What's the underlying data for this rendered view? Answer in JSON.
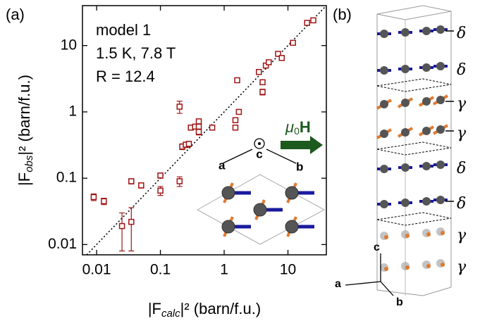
{
  "chart_data": {
    "type": "scatter",
    "panel_label": "(a)",
    "x_label": {
      "pre": "|F",
      "sub": "calc",
      "post": "|² (barn/f.u.)"
    },
    "y_label": {
      "pre": "|F",
      "sub": "obs",
      "post": "|² (barn/f.u.)"
    },
    "annotations": [
      "model 1",
      "1.5 K, 7.8 T",
      "R = 12.4"
    ],
    "log_x": true,
    "log_y": true,
    "xlim": [
      0.006,
      40
    ],
    "ylim": [
      0.007,
      40
    ],
    "xticks": [
      0.01,
      0.1,
      1,
      10
    ],
    "yticks": [
      0.01,
      0.1,
      1,
      10
    ],
    "series": [
      {
        "name": "model 1",
        "color": "#a01515",
        "x": [
          0.009,
          0.013,
          0.025,
          0.035,
          0.035,
          0.05,
          0.1,
          0.1,
          0.2,
          0.2,
          0.22,
          0.25,
          0.28,
          0.3,
          0.35,
          0.4,
          0.4,
          0.4,
          0.65,
          1.5,
          1.5,
          1.7,
          1.6,
          3.5,
          4,
          4,
          4.5,
          5,
          7,
          8,
          12,
          20,
          25
        ],
        "values": [
          0.052,
          0.045,
          0.019,
          0.022,
          0.09,
          0.078,
          0.11,
          0.065,
          0.09,
          1.2,
          0.3,
          0.32,
          0.33,
          0.58,
          0.6,
          0.6,
          0.72,
          0.5,
          0.58,
          0.75,
          0.58,
          1.0,
          3.0,
          4.0,
          2.0,
          2.8,
          5.0,
          5.6,
          7.5,
          6.5,
          11,
          22,
          24
        ],
        "errors": [
          0.006,
          0.005,
          0.011,
          0.014,
          0.008,
          0.007,
          0.01,
          0.01,
          0.015,
          0.25,
          0.03,
          0.03,
          0.03,
          0.05,
          0.05,
          0.05,
          0.06,
          0.05,
          0.05,
          0.06,
          0.05,
          0.08,
          0.2,
          0.3,
          0.2,
          0.2,
          0.4,
          0.4,
          0.6,
          0.5,
          0.8,
          1.5,
          1.8
        ]
      }
    ],
    "inset": {
      "field": "μ",
      "field_sub": "0",
      "field_post": "H",
      "axes": [
        "a",
        "b",
        "c"
      ]
    }
  },
  "panel_b": {
    "panel_label": "(b)",
    "layers": [
      "δ",
      "δ",
      "γ",
      "γ",
      "δ",
      "δ",
      "γ",
      "γ"
    ],
    "axes": [
      "c",
      "a",
      "b"
    ]
  }
}
